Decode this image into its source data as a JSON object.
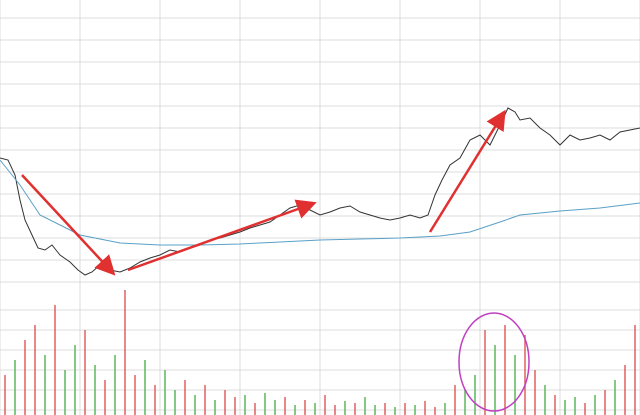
{
  "chart_data": [
    {
      "type": "line",
      "grid": true,
      "xlim": [
        0,
        640
      ],
      "xticks": [
        0,
        80,
        160,
        240,
        320,
        400,
        480,
        560,
        640
      ],
      "ylim": [
        0,
        285
      ],
      "yticks": [
        3,
        25,
        47,
        69,
        91,
        113,
        135,
        157,
        179,
        201,
        223,
        245,
        267
      ],
      "series": [
        {
          "color": "#333333",
          "x": [
            0,
            8,
            15,
            20,
            25,
            32,
            38,
            45,
            52,
            60,
            70,
            78,
            85,
            92,
            100,
            110,
            120,
            130,
            140,
            150,
            160,
            170,
            180,
            190,
            200,
            210,
            220,
            230,
            240,
            250,
            260,
            270,
            280,
            290,
            300,
            310,
            320,
            330,
            340,
            350,
            360,
            370,
            380,
            390,
            400,
            410,
            420,
            428,
            435,
            442,
            450,
            460,
            470,
            480,
            490,
            500,
            508,
            515,
            520,
            530,
            540,
            550,
            560,
            570,
            580,
            590,
            600,
            610,
            620,
            630,
            640
          ],
          "values": [
            127,
            125,
            110,
            85,
            65,
            50,
            37,
            35,
            40,
            30,
            23,
            15,
            10,
            13,
            20,
            15,
            13,
            17,
            23,
            27,
            30,
            35,
            33,
            37,
            40,
            45,
            47,
            50,
            53,
            57,
            60,
            63,
            70,
            77,
            80,
            75,
            70,
            73,
            77,
            79,
            73,
            70,
            67,
            65,
            67,
            70,
            67,
            70,
            90,
            105,
            120,
            127,
            145,
            150,
            140,
            160,
            177,
            173,
            165,
            167,
            157,
            150,
            140,
            150,
            145,
            147,
            150,
            145,
            153,
            155,
            157
          ]
        },
        {
          "color": "#5aa0c8",
          "x": [
            0,
            20,
            40,
            80,
            120,
            160,
            200,
            240,
            280,
            320,
            360,
            400,
            440,
            470,
            500,
            520,
            560,
            600,
            640
          ],
          "values": [
            125,
            100,
            70,
            50,
            42,
            40,
            40,
            41,
            43,
            45,
            46,
            47,
            49,
            53,
            63,
            70,
            74,
            77,
            82
          ]
        }
      ]
    },
    {
      "type": "bar",
      "grid": true,
      "ylim": [
        0,
        125
      ],
      "yticks": [
        5,
        25,
        45,
        65,
        85,
        105
      ],
      "values": [
        40,
        55,
        75,
        90,
        60,
        110,
        45,
        70,
        85,
        50,
        35,
        60,
        125,
        40,
        55,
        30,
        45,
        25,
        35,
        20,
        30,
        15,
        25,
        18,
        20,
        12,
        22,
        15,
        18,
        10,
        15,
        12,
        20,
        10,
        14,
        12,
        18,
        10,
        12,
        8,
        12,
        10,
        14,
        8,
        12,
        30,
        25,
        40,
        85,
        70,
        90,
        60,
        80,
        45,
        30,
        20,
        15,
        18,
        12,
        20,
        25,
        35,
        50,
        90
      ],
      "colors": [
        "#e06060",
        "#5cb85c",
        "#e06060",
        "#e06060",
        "#5cb85c",
        "#e06060",
        "#5cb85c",
        "#5cb85c",
        "#e06060",
        "#5cb85c",
        "#e06060",
        "#5cb85c",
        "#e06060",
        "#e06060",
        "#5cb85c",
        "#e06060",
        "#5cb85c",
        "#5cb85c",
        "#e06060",
        "#5cb85c",
        "#e06060",
        "#5cb85c",
        "#e06060",
        "#e06060",
        "#5cb85c",
        "#e06060",
        "#5cb85c",
        "#5cb85c",
        "#e06060",
        "#5cb85c",
        "#e06060",
        "#5cb85c",
        "#e06060",
        "#e06060",
        "#5cb85c",
        "#e06060",
        "#5cb85c",
        "#5cb85c",
        "#e06060",
        "#5cb85c",
        "#e06060",
        "#5cb85c",
        "#e06060",
        "#e06060",
        "#5cb85c",
        "#e06060",
        "#5cb85c",
        "#5cb85c",
        "#e06060",
        "#5cb85c",
        "#e06060",
        "#5cb85c",
        "#e06060",
        "#e06060",
        "#5cb85c",
        "#e06060",
        "#5cb85c",
        "#5cb85c",
        "#e06060",
        "#5cb85c",
        "#e06060",
        "#5cb85c",
        "#e06060",
        "#e06060"
      ]
    }
  ]
}
